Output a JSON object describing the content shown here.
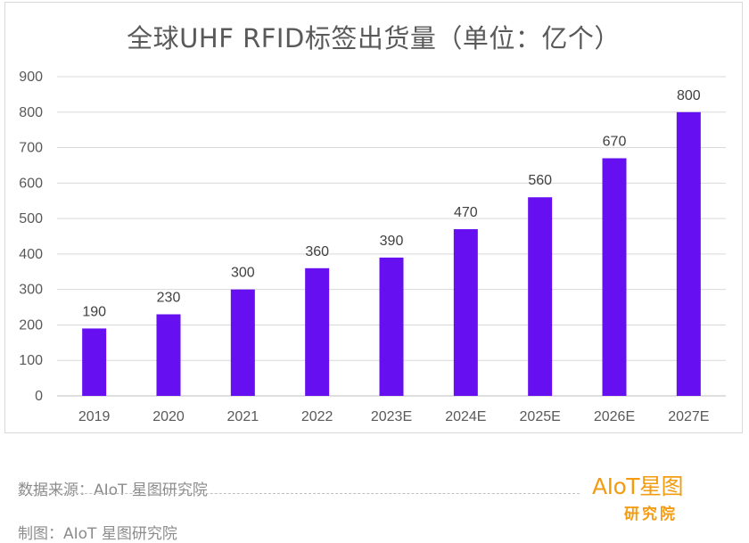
{
  "chart_data": {
    "type": "bar",
    "title": "全球UHF RFID标签出货量（单位：亿个）",
    "categories": [
      "2019",
      "2020",
      "2021",
      "2022",
      "2023E",
      "2024E",
      "2025E",
      "2026E",
      "2027E"
    ],
    "values": [
      190,
      230,
      300,
      360,
      390,
      470,
      560,
      670,
      800
    ],
    "data_labels": [
      "190",
      "230",
      "300",
      "360",
      "390",
      "470",
      "560",
      "670",
      "800"
    ],
    "yticks": [
      0,
      100,
      200,
      300,
      400,
      500,
      600,
      700,
      800,
      900
    ],
    "ylim": [
      0,
      900
    ],
    "xlabel": "",
    "ylabel": "",
    "grid": true,
    "legend": "none",
    "bar_color": "#6610f2"
  },
  "footer": {
    "source": "数据来源：AIoT 星图研究院",
    "credit": "制图：AIoT 星图研究院"
  },
  "logo": {
    "top_text": "AIoT星图",
    "bottom_text": "研究院",
    "color": "#f39c12"
  }
}
